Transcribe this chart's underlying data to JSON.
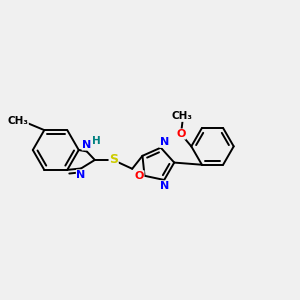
{
  "bg_color": "#f0f0f0",
  "bond_color": "#000000",
  "atom_colors": {
    "N": "#0000ff",
    "O": "#ff0000",
    "S": "#cccc00",
    "H": "#008080",
    "C": "#000000"
  },
  "figsize": [
    3.0,
    3.0
  ],
  "dpi": 100
}
